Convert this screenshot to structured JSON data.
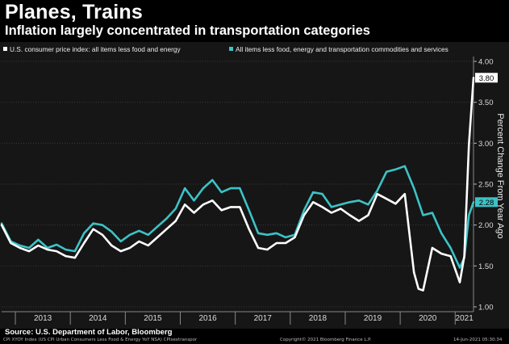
{
  "header": {
    "title": "Planes, Trains",
    "subtitle": "Inflation largely concentrated in transportation categories"
  },
  "footer": {
    "source": "Source: U.S. Department of Labor, Bloomberg",
    "ticker": "CPI XYOY Index (US CPI Urban Consumers Less Food & Energy YoY NSA) CPIxextranspor",
    "copyright": "Copyright© 2021 Bloomberg Finance L.P.",
    "timestamp": "14-Jun-2021 05:30:34"
  },
  "colors": {
    "background": "#161616",
    "series_core": "#ffffff",
    "series_ex_transport": "#3cc3c6",
    "grid": "#3a3a3a"
  },
  "chart_data": {
    "type": "line",
    "title": "Planes, Trains",
    "subtitle": "Inflation largely concentrated in transportation categories",
    "ylabel": "Percent Change From Year Ago",
    "ylim": [
      1.0,
      4.0
    ],
    "yticks": [
      "1.00",
      "1.50",
      "2.00",
      "2.50",
      "3.00",
      "3.50",
      "4.00"
    ],
    "yaxis_side": "right",
    "grid": true,
    "legend_position": "top",
    "xlim": [
      "2012-10",
      "2021-05"
    ],
    "xticks": [
      "2013",
      "2014",
      "2015",
      "2016",
      "2017",
      "2018",
      "2019",
      "2020",
      "2021"
    ],
    "last_value_labels": [
      {
        "series": 0,
        "text": "3.80"
      },
      {
        "series": 1,
        "text": "2.28"
      }
    ],
    "series": [
      {
        "name": "U.S. consumer price index: all items less food and energy",
        "color": "#ffffff",
        "points": [
          [
            "2012-10",
            2.0
          ],
          [
            "2012-12",
            1.78
          ],
          [
            "2013-02",
            1.72
          ],
          [
            "2013-04",
            1.68
          ],
          [
            "2013-06",
            1.75
          ],
          [
            "2013-08",
            1.7
          ],
          [
            "2013-10",
            1.68
          ],
          [
            "2013-12",
            1.62
          ],
          [
            "2014-02",
            1.6
          ],
          [
            "2014-04",
            1.78
          ],
          [
            "2014-06",
            1.95
          ],
          [
            "2014-08",
            1.88
          ],
          [
            "2014-10",
            1.75
          ],
          [
            "2014-12",
            1.68
          ],
          [
            "2015-02",
            1.72
          ],
          [
            "2015-04",
            1.8
          ],
          [
            "2015-06",
            1.75
          ],
          [
            "2015-08",
            1.85
          ],
          [
            "2015-10",
            1.95
          ],
          [
            "2015-12",
            2.05
          ],
          [
            "2016-02",
            2.25
          ],
          [
            "2016-04",
            2.15
          ],
          [
            "2016-06",
            2.25
          ],
          [
            "2016-08",
            2.3
          ],
          [
            "2016-10",
            2.18
          ],
          [
            "2016-12",
            2.22
          ],
          [
            "2017-02",
            2.22
          ],
          [
            "2017-04",
            1.95
          ],
          [
            "2017-06",
            1.72
          ],
          [
            "2017-08",
            1.7
          ],
          [
            "2017-10",
            1.78
          ],
          [
            "2017-12",
            1.78
          ],
          [
            "2018-02",
            1.85
          ],
          [
            "2018-04",
            2.12
          ],
          [
            "2018-06",
            2.28
          ],
          [
            "2018-08",
            2.22
          ],
          [
            "2018-10",
            2.15
          ],
          [
            "2018-12",
            2.2
          ],
          [
            "2019-02",
            2.12
          ],
          [
            "2019-04",
            2.05
          ],
          [
            "2019-06",
            2.12
          ],
          [
            "2019-08",
            2.38
          ],
          [
            "2019-10",
            2.32
          ],
          [
            "2019-12",
            2.26
          ],
          [
            "2020-02",
            2.38
          ],
          [
            "2020-04",
            1.42
          ],
          [
            "2020-05",
            1.22
          ],
          [
            "2020-06",
            1.2
          ],
          [
            "2020-08",
            1.72
          ],
          [
            "2020-10",
            1.65
          ],
          [
            "2020-12",
            1.62
          ],
          [
            "2021-02",
            1.3
          ],
          [
            "2021-03",
            1.62
          ],
          [
            "2021-04",
            2.98
          ],
          [
            "2021-05",
            3.8
          ]
        ]
      },
      {
        "name": "All items less food, energy and transportation commodities and services",
        "color": "#3cc3c6",
        "points": [
          [
            "2012-10",
            2.02
          ],
          [
            "2012-12",
            1.8
          ],
          [
            "2013-02",
            1.75
          ],
          [
            "2013-04",
            1.72
          ],
          [
            "2013-06",
            1.82
          ],
          [
            "2013-08",
            1.72
          ],
          [
            "2013-10",
            1.76
          ],
          [
            "2013-12",
            1.7
          ],
          [
            "2014-02",
            1.68
          ],
          [
            "2014-04",
            1.9
          ],
          [
            "2014-06",
            2.02
          ],
          [
            "2014-08",
            2.0
          ],
          [
            "2014-10",
            1.92
          ],
          [
            "2014-12",
            1.8
          ],
          [
            "2015-02",
            1.88
          ],
          [
            "2015-04",
            1.93
          ],
          [
            "2015-06",
            1.88
          ],
          [
            "2015-08",
            1.98
          ],
          [
            "2015-10",
            2.08
          ],
          [
            "2015-12",
            2.2
          ],
          [
            "2016-02",
            2.45
          ],
          [
            "2016-04",
            2.3
          ],
          [
            "2016-06",
            2.45
          ],
          [
            "2016-08",
            2.55
          ],
          [
            "2016-10",
            2.4
          ],
          [
            "2016-12",
            2.45
          ],
          [
            "2017-02",
            2.45
          ],
          [
            "2017-04",
            2.18
          ],
          [
            "2017-06",
            1.9
          ],
          [
            "2017-08",
            1.88
          ],
          [
            "2017-10",
            1.9
          ],
          [
            "2017-12",
            1.85
          ],
          [
            "2018-02",
            1.88
          ],
          [
            "2018-04",
            2.18
          ],
          [
            "2018-06",
            2.4
          ],
          [
            "2018-08",
            2.38
          ],
          [
            "2018-10",
            2.22
          ],
          [
            "2018-12",
            2.25
          ],
          [
            "2019-02",
            2.28
          ],
          [
            "2019-04",
            2.3
          ],
          [
            "2019-06",
            2.25
          ],
          [
            "2019-08",
            2.42
          ],
          [
            "2019-10",
            2.65
          ],
          [
            "2019-12",
            2.68
          ],
          [
            "2020-02",
            2.72
          ],
          [
            "2020-04",
            2.45
          ],
          [
            "2020-06",
            2.12
          ],
          [
            "2020-08",
            2.15
          ],
          [
            "2020-10",
            1.9
          ],
          [
            "2020-12",
            1.72
          ],
          [
            "2021-02",
            1.48
          ],
          [
            "2021-03",
            1.6
          ],
          [
            "2021-04",
            2.12
          ],
          [
            "2021-05",
            2.28
          ]
        ]
      }
    ]
  }
}
